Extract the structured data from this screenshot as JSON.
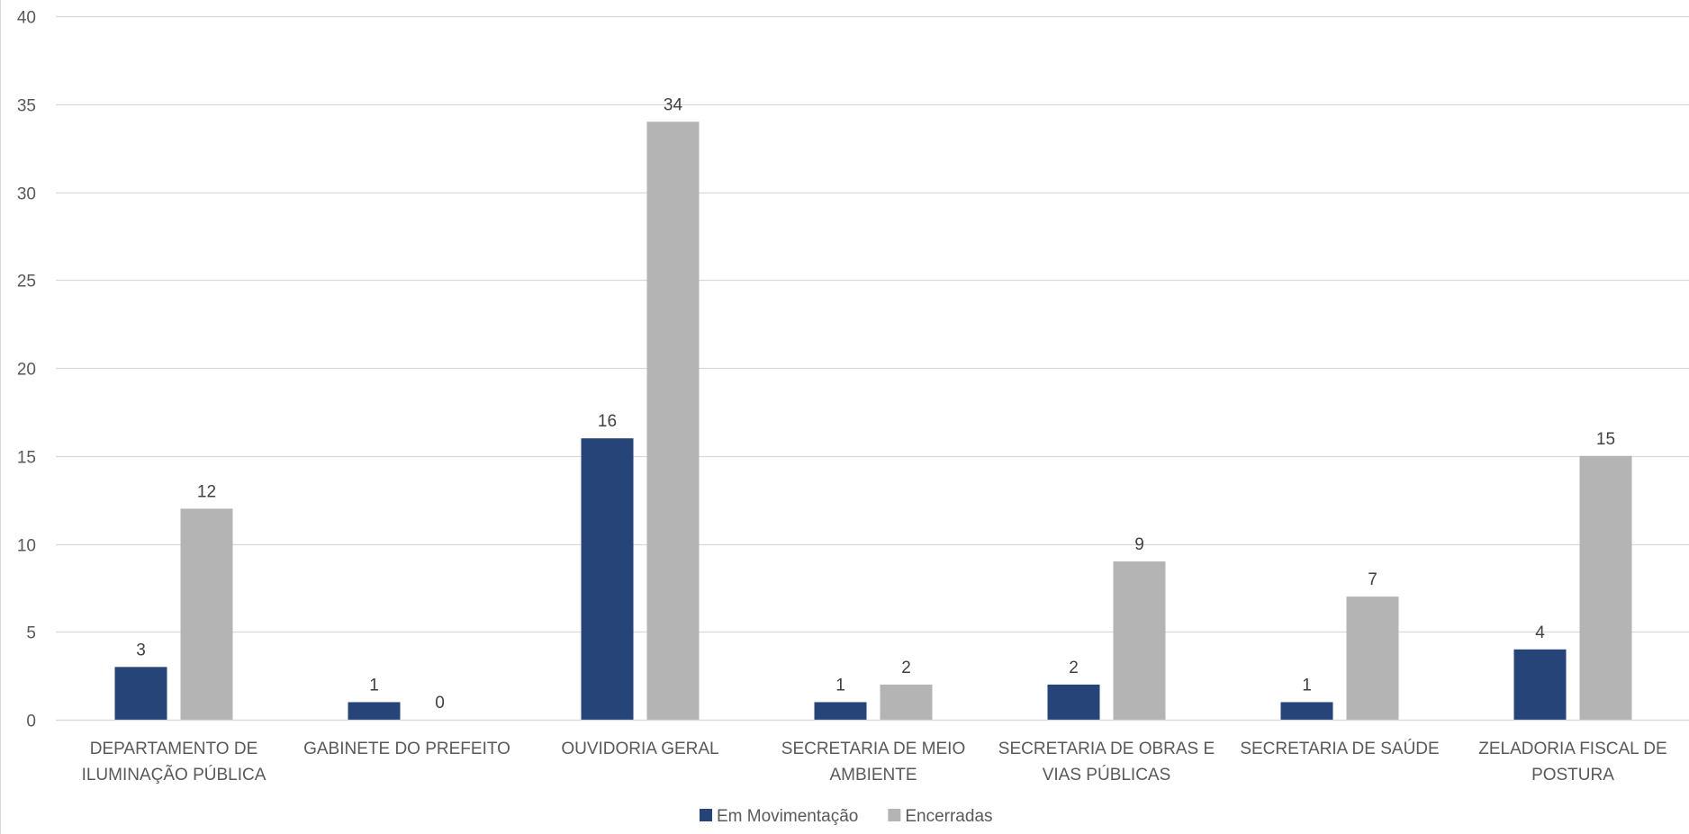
{
  "chart_data": {
    "type": "bar",
    "title": "",
    "xlabel": "",
    "ylabel": "",
    "ylim": [
      0,
      40
    ],
    "yticks": [
      0,
      5,
      10,
      15,
      20,
      25,
      30,
      35,
      40
    ],
    "grid": true,
    "legend_position": "bottom",
    "categories": [
      [
        "DEPARTAMENTO DE",
        "ILUMINAÇÃO PÚBLICA"
      ],
      [
        "GABINETE DO PREFEITO"
      ],
      [
        "OUVIDORIA GERAL"
      ],
      [
        "SECRETARIA DE MEIO",
        "AMBIENTE"
      ],
      [
        "SECRETARIA DE OBRAS E",
        "VIAS PÚBLICAS"
      ],
      [
        "SECRETARIA DE SAÚDE"
      ],
      [
        "ZELADORIA FISCAL DE",
        "POSTURA"
      ]
    ],
    "series": [
      {
        "name": "Em Movimentação",
        "color": "#264478",
        "values": [
          3,
          1,
          16,
          1,
          2,
          1,
          4
        ]
      },
      {
        "name": "Encerradas",
        "color": "#b4b4b4",
        "values": [
          12,
          0,
          34,
          2,
          9,
          7,
          15
        ]
      }
    ],
    "gridline_color": "#d9d9d9"
  }
}
